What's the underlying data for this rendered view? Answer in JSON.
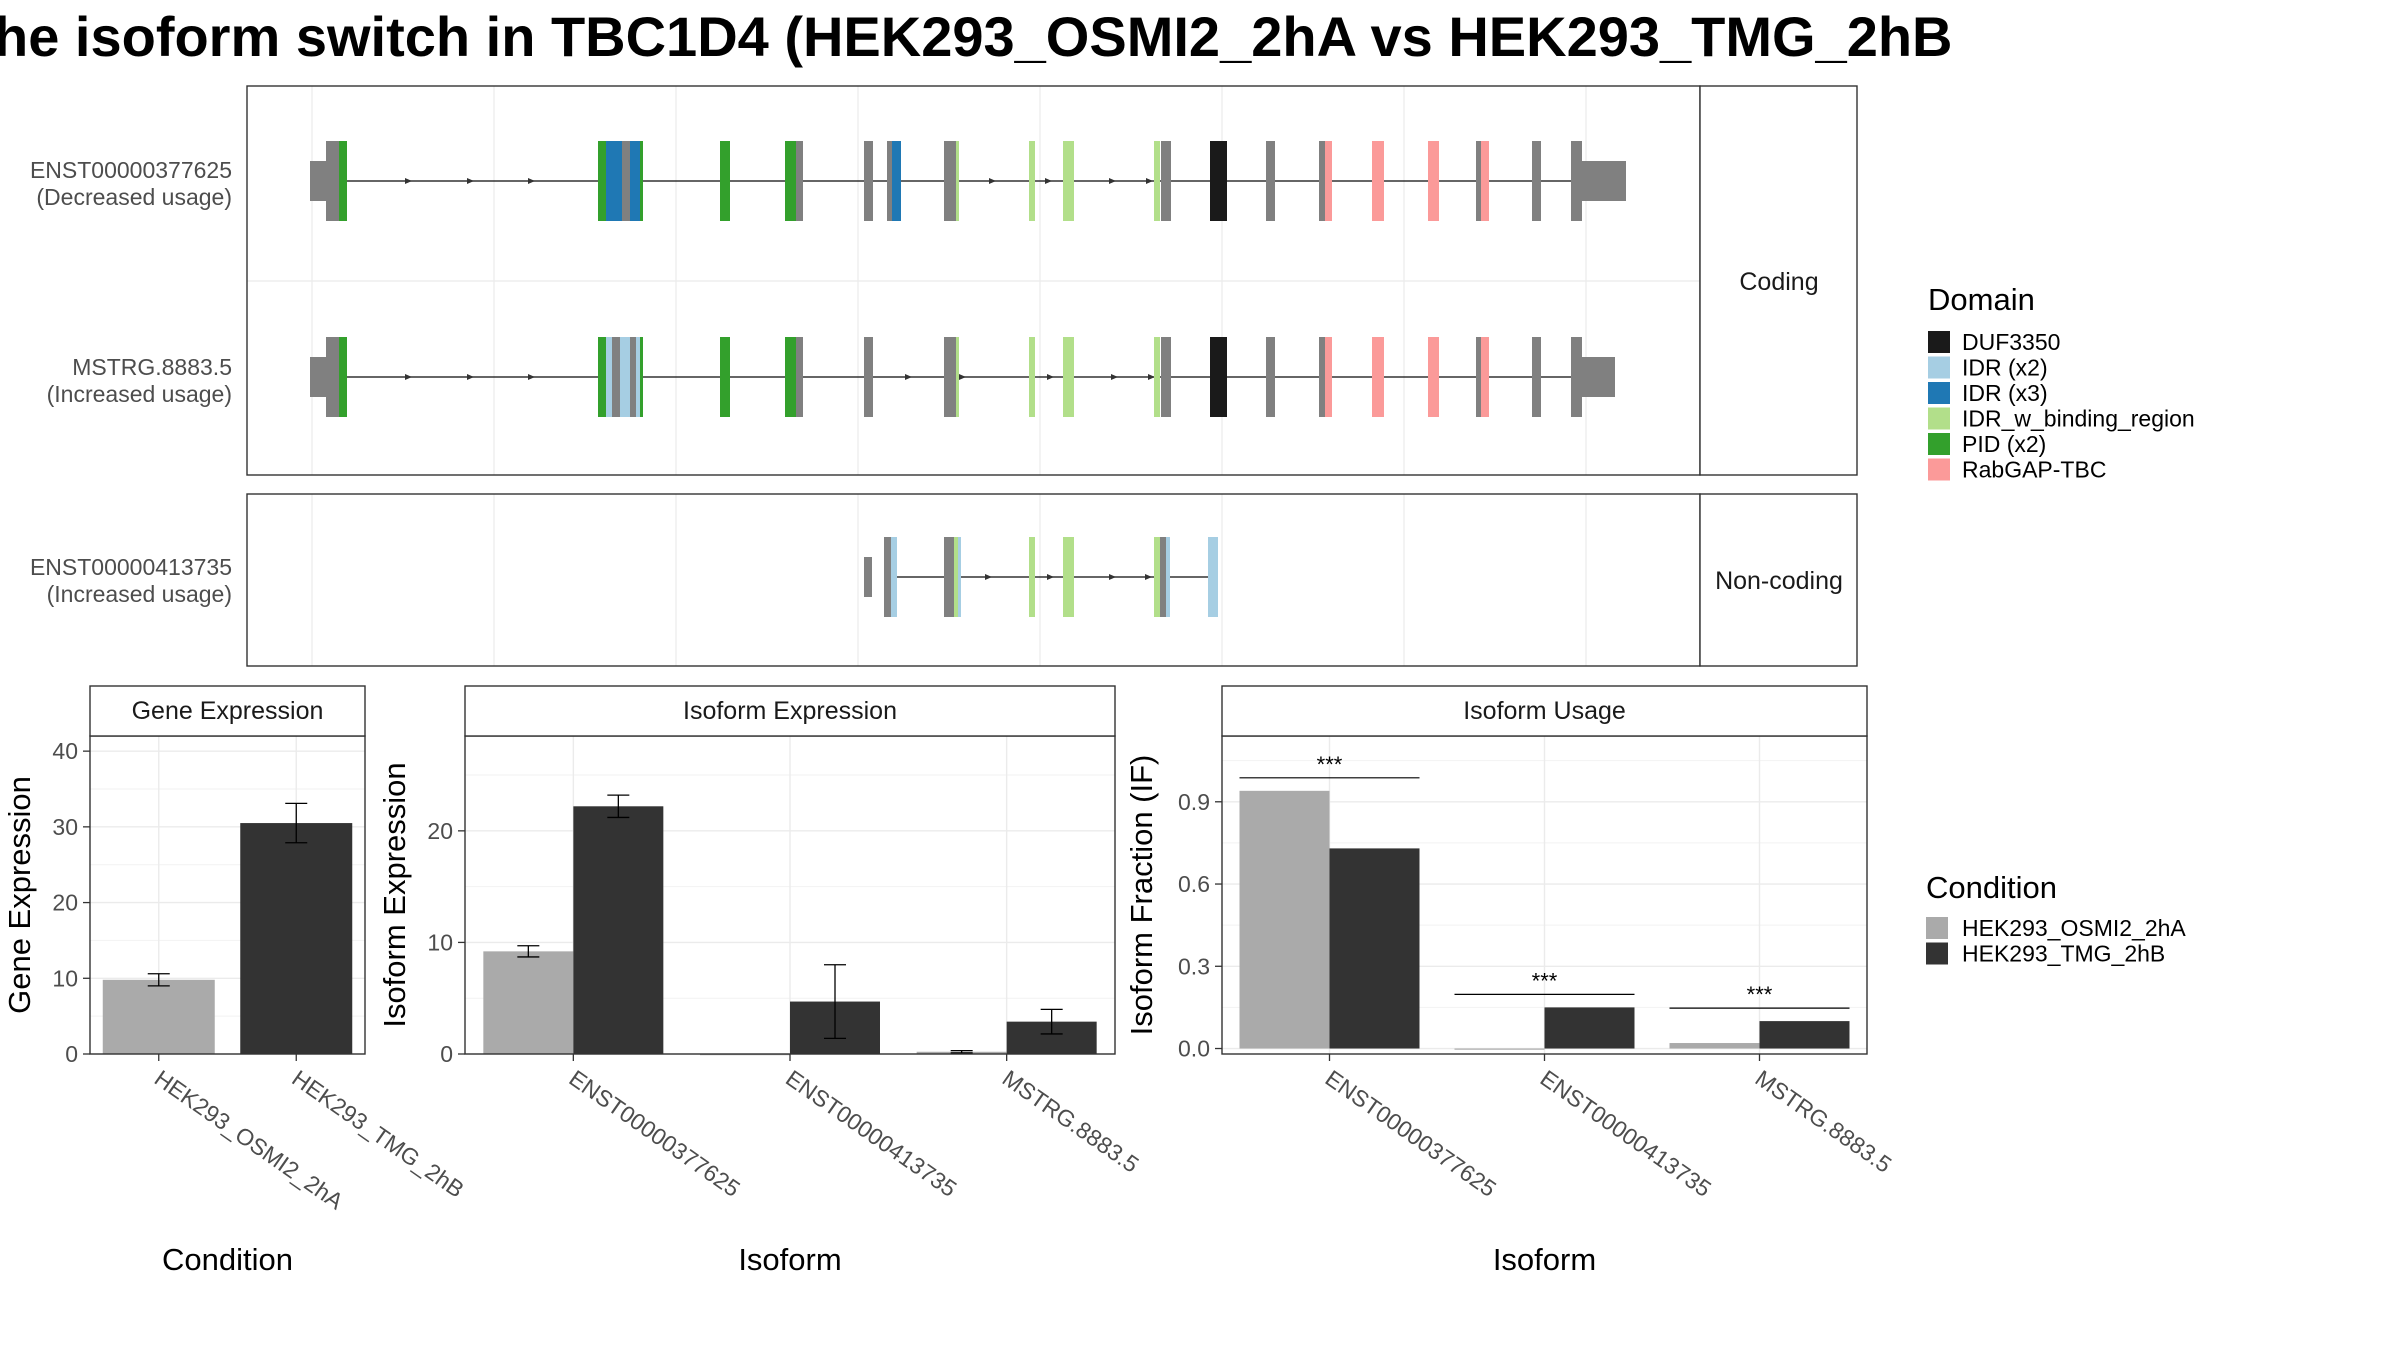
{
  "title": "he isoform switch in TBC1D4 (HEK293_OSMI2_2hA vs HEK293_TMG_2hB",
  "colors": {
    "HEK293_OSMI2_2hA": "#aaaaaa",
    "HEK293_TMG_2hB": "#333333",
    "exon_plain": "#808080",
    "DUF3350": "#1a1a1a",
    "IDR (x2)": "#a6cee3",
    "IDR (x3)": "#1f78b4",
    "IDR_w_binding_region": "#b2df8a",
    "PID (x2)": "#33a02c",
    "RabGAP-TBC": "#fb9a99"
  },
  "structure": {
    "facets": [
      "Coding",
      "Non-coding"
    ],
    "transcripts": [
      {
        "id": "ENST00000377625",
        "usage": "(Decreased usage)",
        "facet": "Coding"
      },
      {
        "id": "MSTRG.8883.5",
        "usage": "(Increased usage)",
        "facet": "Coding"
      },
      {
        "id": "ENST00000413735",
        "usage": "(Increased usage)",
        "facet": "Non-coding"
      }
    ]
  },
  "legend_domain": {
    "title": "Domain",
    "items": [
      "DUF3350",
      "IDR (x2)",
      "IDR (x3)",
      "IDR_w_binding_region",
      "PID (x2)",
      "RabGAP-TBC"
    ]
  },
  "legend_condition": {
    "title": "Condition",
    "items": [
      "HEK293_OSMI2_2hA",
      "HEK293_TMG_2hB"
    ]
  },
  "chart_data": [
    {
      "type": "bar",
      "title": "Gene Expression",
      "xlabel": "Condition",
      "ylabel": "Gene Expression",
      "categories": [
        "HEK293_OSMI2_2hA",
        "HEK293_TMG_2hB"
      ],
      "values": [
        9.8,
        30.5
      ],
      "errors": [
        0.8,
        2.6
      ],
      "ylim": [
        0,
        42
      ],
      "yticks": [
        0,
        10,
        20,
        30,
        40
      ]
    },
    {
      "type": "bar",
      "title": "Isoform Expression",
      "xlabel": "Isoform",
      "ylabel": "Isoform Expression",
      "categories": [
        "ENST00000377625",
        "ENST00000413735",
        "MSTRG.8883.5"
      ],
      "series": [
        {
          "name": "HEK293_OSMI2_2hA",
          "values": [
            9.2,
            0.0,
            0.2
          ],
          "errors": [
            0.5,
            0.0,
            0.1
          ]
        },
        {
          "name": "HEK293_TMG_2hB",
          "values": [
            22.2,
            4.7,
            2.9
          ],
          "errors": [
            1.0,
            3.3,
            1.1
          ]
        }
      ],
      "ylim": [
        0,
        28.5
      ],
      "yticks": [
        0,
        10,
        20
      ]
    },
    {
      "type": "bar",
      "title": "Isoform Usage",
      "xlabel": "Isoform",
      "ylabel": "Isoform Fraction (IF)",
      "categories": [
        "ENST00000377625",
        "ENST00000413735",
        "MSTRG.8883.5"
      ],
      "series": [
        {
          "name": "HEK293_OSMI2_2hA",
          "values": [
            0.94,
            0.0,
            0.02
          ]
        },
        {
          "name": "HEK293_TMG_2hB",
          "values": [
            0.73,
            0.15,
            0.1
          ]
        }
      ],
      "significance": [
        "***",
        "***",
        "***"
      ],
      "ylim": [
        -0.02,
        1.14
      ],
      "yticks": [
        "0.0",
        "0.3",
        "0.6",
        "0.9"
      ]
    }
  ]
}
